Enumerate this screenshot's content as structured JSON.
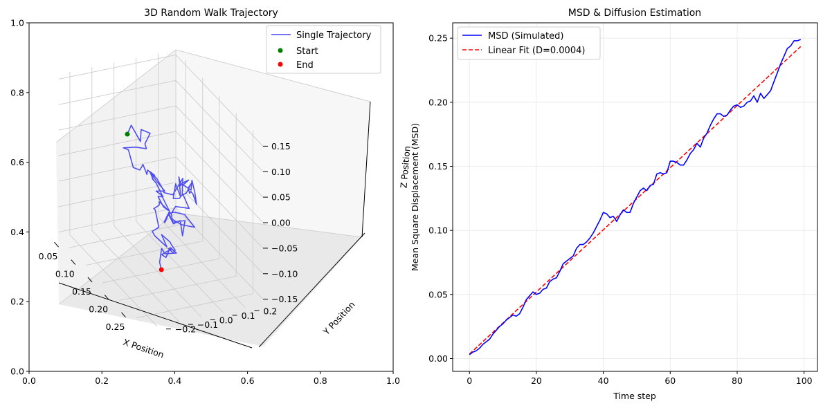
{
  "chart_data": [
    {
      "type": "line",
      "title": "3D Random Walk Trajectory",
      "projection": "3d",
      "xlabel": "X Position",
      "ylabel": "Y Position",
      "zlabel": "Z Position",
      "xlim": [
        0.02,
        0.28
      ],
      "ylim": [
        -0.25,
        0.28
      ],
      "zlim": [
        -0.16,
        0.16
      ],
      "xticks": [
        "0.05",
        "0.10",
        "0.15",
        "0.20",
        "0.25"
      ],
      "xtick_values": [
        0.05,
        0.1,
        0.15,
        0.2,
        0.25
      ],
      "yticks": [
        "−0.2",
        "−0.1",
        "0.0",
        "0.1",
        "0.2"
      ],
      "ytick_values": [
        -0.2,
        -0.1,
        0.0,
        0.1,
        0.2
      ],
      "zticks": [
        "0.15",
        "0.10",
        "0.05",
        "0.00",
        "−0.05",
        "−0.10",
        "−0.15"
      ],
      "ztick_values": [
        0.15,
        0.1,
        0.05,
        0.0,
        -0.05,
        -0.1,
        -0.15
      ],
      "background_axes": {
        "xticks": [
          "0.0",
          "0.2",
          "0.4",
          "0.6",
          "0.8",
          "1.0"
        ],
        "xtick_values": [
          0.0,
          0.2,
          0.4,
          0.6,
          0.8,
          1.0
        ],
        "yticks": [
          "0.0",
          "0.2",
          "0.4",
          "0.6",
          "0.8",
          "1.0"
        ],
        "ytick_values": [
          0.0,
          0.2,
          0.4,
          0.6,
          0.8,
          1.0
        ]
      },
      "grid": true,
      "legend_position": "top-right",
      "series": [
        {
          "name": "Single Trajectory",
          "kind": "line",
          "color": "#4646f0",
          "points": [
            [
              0.044,
              0.024,
              0.034
            ],
            [
              0.049,
              0.034,
              0.054
            ],
            [
              0.062,
              0.056,
              0.029
            ],
            [
              0.07,
              0.047,
              0.059
            ],
            [
              0.081,
              0.071,
              0.057
            ],
            [
              0.078,
              0.052,
              0.036
            ],
            [
              0.077,
              0.06,
              0.025
            ],
            [
              0.068,
              0.025,
              0.025
            ],
            [
              0.049,
              -0.002,
              0.013
            ],
            [
              0.055,
              0.012,
              0.012
            ],
            [
              0.067,
              0.014,
              -0.012
            ],
            [
              0.081,
              -0.006,
              -0.003
            ],
            [
              0.087,
              0.015,
              -0.006
            ],
            [
              0.096,
              0.016,
              0.011
            ],
            [
              0.107,
              0.017,
              -0.001
            ],
            [
              0.116,
              0.006,
              0.015
            ],
            [
              0.131,
              0.025,
              0.007
            ],
            [
              0.145,
              0.036,
              -0.009
            ],
            [
              0.133,
              0.054,
              -0.022
            ],
            [
              0.145,
              0.076,
              -0.02
            ],
            [
              0.156,
              0.091,
              0.008
            ],
            [
              0.152,
              0.111,
              0.014
            ],
            [
              0.158,
              0.099,
              -0.014
            ],
            [
              0.169,
              0.102,
              -0.002
            ],
            [
              0.172,
              0.119,
              0.017
            ],
            [
              0.174,
              0.102,
              0.011
            ],
            [
              0.163,
              0.125,
              -0.009
            ],
            [
              0.152,
              0.148,
              -0.015
            ],
            [
              0.156,
              0.151,
              -0.018
            ],
            [
              0.166,
              0.152,
              -0.031
            ],
            [
              0.162,
              0.15,
              -0.01
            ],
            [
              0.149,
              0.157,
              0.004
            ],
            [
              0.149,
              0.153,
              -0.015
            ],
            [
              0.135,
              0.138,
              -0.013
            ],
            [
              0.13,
              0.171,
              -0.01
            ],
            [
              0.122,
              0.153,
              -0.02
            ],
            [
              0.108,
              0.169,
              -0.036
            ],
            [
              0.114,
              0.151,
              -0.013
            ],
            [
              0.126,
              0.139,
              -0.034
            ],
            [
              0.116,
              0.154,
              -0.049
            ],
            [
              0.095,
              0.165,
              -0.041
            ],
            [
              0.096,
              0.153,
              -0.068
            ],
            [
              0.107,
              0.164,
              -0.061
            ],
            [
              0.115,
              0.167,
              -0.047
            ],
            [
              0.132,
              0.17,
              -0.064
            ],
            [
              0.11,
              0.142,
              -0.073
            ],
            [
              0.115,
              0.115,
              -0.081
            ],
            [
              0.118,
              0.117,
              -0.096
            ],
            [
              0.136,
              0.145,
              -0.083
            ],
            [
              0.148,
              0.116,
              -0.102
            ],
            [
              0.124,
              0.142,
              -0.091
            ],
            [
              0.109,
              0.134,
              -0.107
            ],
            [
              0.097,
              0.13,
              -0.096
            ],
            [
              0.095,
              0.117,
              -0.112
            ],
            [
              0.099,
              0.107,
              -0.108
            ],
            [
              0.112,
              0.109,
              -0.08
            ],
            [
              0.12,
              0.105,
              -0.086
            ],
            [
              0.132,
              0.136,
              -0.093
            ],
            [
              0.148,
              0.171,
              -0.09
            ],
            [
              0.132,
              0.149,
              -0.074
            ],
            [
              0.112,
              0.135,
              -0.082
            ],
            [
              0.111,
              0.117,
              -0.083
            ],
            [
              0.093,
              0.104,
              -0.059
            ],
            [
              0.094,
              0.078,
              -0.048
            ],
            [
              0.108,
              0.096,
              -0.04
            ],
            [
              0.091,
              0.083,
              -0.03
            ],
            [
              0.073,
              0.08,
              -0.024
            ],
            [
              0.091,
              0.076,
              -0.019
            ],
            [
              0.089,
              0.057,
              -0.011
            ],
            [
              0.105,
              0.05,
              -0.017
            ],
            [
              0.095,
              0.059,
              -0.021
            ],
            [
              0.114,
              0.048,
              -0.016
            ],
            [
              0.128,
              0.058,
              -0.034
            ],
            [
              0.114,
              0.057,
              -0.043
            ],
            [
              0.134,
              0.051,
              -0.049
            ],
            [
              0.134,
              0.073,
              -0.058
            ],
            [
              0.11,
              0.069,
              -0.057
            ],
            [
              0.1,
              0.083,
              -0.072
            ],
            [
              0.108,
              0.047,
              -0.07
            ],
            [
              0.121,
              0.033,
              -0.062
            ],
            [
              0.132,
              0.033,
              -0.089
            ],
            [
              0.132,
              0.003,
              -0.094
            ],
            [
              0.15,
              -0.013,
              -0.089
            ],
            [
              0.173,
              0.007,
              -0.097
            ],
            [
              0.148,
              0.021,
              -0.091
            ],
            [
              0.171,
              0.024,
              -0.09
            ],
            [
              0.188,
              0.005,
              -0.082
            ],
            [
              0.203,
              -0.001,
              -0.082
            ],
            [
              0.211,
              -0.023,
              -0.079
            ],
            [
              0.203,
              -0.032,
              -0.076
            ],
            [
              0.215,
              -0.031,
              -0.07
            ],
            [
              0.212,
              -0.032,
              -0.069
            ],
            [
              0.211,
              -0.036,
              -0.072
            ],
            [
              0.197,
              -0.053,
              -0.09
            ],
            [
              0.213,
              -0.058,
              -0.084
            ],
            [
              0.216,
              -0.043,
              -0.064
            ],
            [
              0.237,
              -0.047,
              -0.06
            ],
            [
              0.211,
              -0.06,
              -0.078
            ],
            [
              0.204,
              -0.064,
              -0.072
            ],
            [
              0.202,
              -0.07,
              -0.1
            ],
            [
              0.212,
              -0.077,
              -0.107
            ]
          ]
        },
        {
          "name": "Start",
          "kind": "point",
          "color": "#008000",
          "point": [
            0.044,
            0.024,
            0.034
          ]
        },
        {
          "name": "End",
          "kind": "point",
          "color": "#ff0000",
          "point": [
            0.212,
            -0.077,
            -0.107
          ]
        }
      ]
    },
    {
      "type": "line",
      "title": "MSD & Diffusion Estimation",
      "xlabel": "Time step",
      "ylabel": "Mean Square Displacement (MSD)",
      "xlim": [
        -5,
        104
      ],
      "ylim": [
        -0.01,
        0.262
      ],
      "xticks": [
        0,
        20,
        40,
        60,
        80,
        100
      ],
      "yticks": [
        0.0,
        0.05,
        0.1,
        0.15,
        0.2,
        0.25
      ],
      "ytick_labels": [
        "0.00",
        "0.05",
        "0.10",
        "0.15",
        "0.20",
        "0.25"
      ],
      "grid": true,
      "legend_position": "top-left",
      "series": [
        {
          "name": "MSD (Simulated)",
          "color": "#0000ff",
          "style": "solid",
          "x": [
            0,
            1,
            2,
            3,
            4,
            5,
            6,
            7,
            8,
            9,
            10,
            11,
            12,
            13,
            14,
            15,
            16,
            17,
            18,
            19,
            20,
            21,
            22,
            23,
            24,
            25,
            26,
            27,
            28,
            29,
            30,
            31,
            32,
            33,
            34,
            35,
            36,
            37,
            38,
            39,
            40,
            41,
            42,
            43,
            44,
            45,
            46,
            47,
            48,
            49,
            50,
            51,
            52,
            53,
            54,
            55,
            56,
            57,
            58,
            59,
            60,
            61,
            62,
            63,
            64,
            65,
            66,
            67,
            68,
            69,
            70,
            71,
            72,
            73,
            74,
            75,
            76,
            77,
            78,
            79,
            80,
            81,
            82,
            83,
            84,
            85,
            86,
            87,
            88,
            89,
            90,
            91,
            92,
            93,
            94,
            95,
            96,
            97,
            98,
            99
          ],
          "values": [
            0.003,
            0.005,
            0.006,
            0.008,
            0.011,
            0.013,
            0.015,
            0.019,
            0.022,
            0.025,
            0.027,
            0.03,
            0.032,
            0.034,
            0.033,
            0.035,
            0.04,
            0.046,
            0.049,
            0.052,
            0.05,
            0.051,
            0.054,
            0.055,
            0.06,
            0.062,
            0.063,
            0.068,
            0.074,
            0.076,
            0.078,
            0.08,
            0.086,
            0.089,
            0.089,
            0.091,
            0.094,
            0.098,
            0.103,
            0.108,
            0.114,
            0.113,
            0.11,
            0.111,
            0.107,
            0.112,
            0.116,
            0.114,
            0.114,
            0.121,
            0.126,
            0.131,
            0.133,
            0.131,
            0.135,
            0.136,
            0.144,
            0.145,
            0.144,
            0.145,
            0.154,
            0.154,
            0.153,
            0.151,
            0.151,
            0.155,
            0.16,
            0.163,
            0.168,
            0.165,
            0.172,
            0.176,
            0.182,
            0.187,
            0.191,
            0.191,
            0.189,
            0.19,
            0.194,
            0.197,
            0.198,
            0.196,
            0.197,
            0.2,
            0.201,
            0.205,
            0.2,
            0.207,
            0.203,
            0.206,
            0.209,
            0.216,
            0.223,
            0.23,
            0.236,
            0.242,
            0.244,
            0.248,
            0.248,
            0.249
          ]
        },
        {
          "name": "Linear Fit (D=0.0004)",
          "color": "#ff0000",
          "style": "dashed",
          "x": [
            0,
            99
          ],
          "values": [
            0.0035,
            0.2435
          ]
        }
      ]
    }
  ]
}
